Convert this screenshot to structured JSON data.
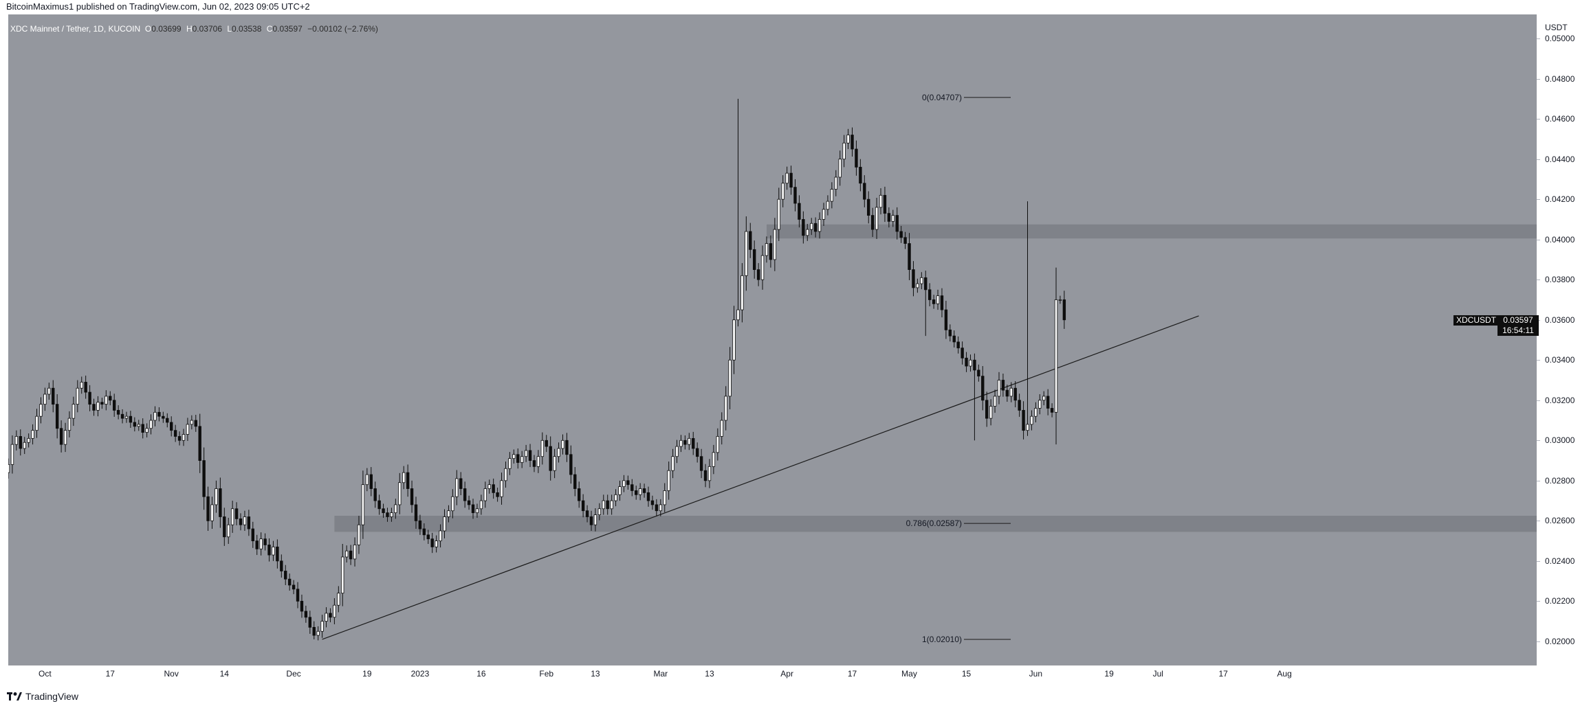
{
  "header": {
    "publisher_text": "BitcoinMaximus1 published on TradingView.com, Jun 02, 2023 09:05 UTC+2"
  },
  "legend": {
    "symbol_text": "XDC Mainnet / Tether, 1D, KUCOIN",
    "o_label": "O",
    "o_value": "0.03699",
    "h_label": "H",
    "h_value": "0.03706",
    "l_label": "L",
    "l_value": "0.03538",
    "c_label": "C",
    "c_value": "0.03597",
    "change": "−0.00102 (−2.76%)"
  },
  "price_tag": {
    "symbol": "XDCUSDT",
    "price": "0.03597",
    "countdown": "16:54:11"
  },
  "footer": {
    "logo_text": "TradingView"
  },
  "chart_data": {
    "type": "candlestick",
    "pair": "XDCUSDT",
    "interval": "1D",
    "exchange": "KUCOIN",
    "y_unit": "USDT",
    "ylim": [
      0.0188,
      0.0512
    ],
    "y_ticks": [
      "0.02000",
      "0.02200",
      "0.02400",
      "0.02600",
      "0.02800",
      "0.03000",
      "0.03200",
      "0.03400",
      "0.03600",
      "0.03800",
      "0.04000",
      "0.04200",
      "0.04400",
      "0.04600",
      "0.04800",
      "0.05000"
    ],
    "x_ticks": [
      {
        "label": "Oct",
        "date": "2022-10-01"
      },
      {
        "label": "17",
        "date": "2022-10-17"
      },
      {
        "label": "Nov",
        "date": "2022-11-01"
      },
      {
        "label": "14",
        "date": "2022-11-14"
      },
      {
        "label": "Dec",
        "date": "2022-12-01"
      },
      {
        "label": "19",
        "date": "2022-12-19"
      },
      {
        "label": "2023",
        "date": "2023-01-01"
      },
      {
        "label": "16",
        "date": "2023-01-16"
      },
      {
        "label": "Feb",
        "date": "2023-02-01"
      },
      {
        "label": "13",
        "date": "2023-02-13"
      },
      {
        "label": "Mar",
        "date": "2023-03-01"
      },
      {
        "label": "13",
        "date": "2023-03-13"
      },
      {
        "label": "Apr",
        "date": "2023-04-01"
      },
      {
        "label": "17",
        "date": "2023-04-17"
      },
      {
        "label": "May",
        "date": "2023-05-01"
      },
      {
        "label": "15",
        "date": "2023-05-15"
      },
      {
        "label": "Jun",
        "date": "2023-06-01"
      },
      {
        "label": "19",
        "date": "2023-06-19"
      },
      {
        "label": "Jul",
        "date": "2023-07-01"
      },
      {
        "label": "17",
        "date": "2023-07-17"
      },
      {
        "label": "Aug",
        "date": "2023-08-01"
      }
    ],
    "start_date": "2022-09-22",
    "candles_close": [
      0.0288,
      0.0298,
      0.0302,
      0.0296,
      0.0299,
      0.0301,
      0.0305,
      0.0312,
      0.0318,
      0.0323,
      0.0326,
      0.0318,
      0.0306,
      0.0298,
      0.0305,
      0.0311,
      0.0318,
      0.0326,
      0.0329,
      0.0324,
      0.0318,
      0.0315,
      0.0319,
      0.0318,
      0.0322,
      0.032,
      0.0315,
      0.0313,
      0.0311,
      0.0312,
      0.0309,
      0.0307,
      0.0308,
      0.0304,
      0.0306,
      0.031,
      0.0314,
      0.0312,
      0.0311,
      0.0309,
      0.0305,
      0.0302,
      0.03,
      0.0303,
      0.0308,
      0.031,
      0.0307,
      0.029,
      0.0272,
      0.026,
      0.0268,
      0.0276,
      0.0262,
      0.0252,
      0.0258,
      0.0266,
      0.0261,
      0.0258,
      0.0262,
      0.0256,
      0.025,
      0.0246,
      0.0251,
      0.0248,
      0.0243,
      0.0247,
      0.024,
      0.0235,
      0.0231,
      0.0228,
      0.0226,
      0.022,
      0.0215,
      0.0212,
      0.0207,
      0.0203,
      0.0205,
      0.021,
      0.0214,
      0.0212,
      0.0218,
      0.0224,
      0.0242,
      0.0245,
      0.0241,
      0.0248,
      0.0258,
      0.0278,
      0.0283,
      0.0276,
      0.027,
      0.0266,
      0.0264,
      0.0262,
      0.0264,
      0.0268,
      0.0279,
      0.0284,
      0.0276,
      0.0268,
      0.026,
      0.0256,
      0.0253,
      0.0251,
      0.0247,
      0.025,
      0.0255,
      0.0262,
      0.0265,
      0.0272,
      0.0281,
      0.0276,
      0.027,
      0.0268,
      0.0264,
      0.0266,
      0.027,
      0.0276,
      0.0278,
      0.0274,
      0.0272,
      0.028,
      0.0286,
      0.0291,
      0.0293,
      0.0289,
      0.0292,
      0.0295,
      0.029,
      0.0287,
      0.0292,
      0.03,
      0.0297,
      0.0285,
      0.0292,
      0.0296,
      0.03,
      0.0293,
      0.0283,
      0.0276,
      0.027,
      0.0265,
      0.0262,
      0.0258,
      0.0263,
      0.0266,
      0.027,
      0.0266,
      0.027,
      0.0273,
      0.0277,
      0.028,
      0.0278,
      0.0275,
      0.0273,
      0.0276,
      0.0274,
      0.027,
      0.0268,
      0.0265,
      0.0268,
      0.0275,
      0.0285,
      0.0292,
      0.0297,
      0.03,
      0.0298,
      0.0301,
      0.0296,
      0.0292,
      0.0285,
      0.028,
      0.0287,
      0.0294,
      0.0302,
      0.031,
      0.0322,
      0.034,
      0.036,
      0.0365,
      0.0382,
      0.0404,
      0.0395,
      0.0385,
      0.038,
      0.0392,
      0.0398,
      0.039,
      0.0405,
      0.042,
      0.0428,
      0.0433,
      0.0426,
      0.0418,
      0.041,
      0.0402,
      0.0405,
      0.0408,
      0.0404,
      0.041,
      0.0415,
      0.0419,
      0.0425,
      0.0431,
      0.044,
      0.0448,
      0.0452,
      0.0445,
      0.0436,
      0.0428,
      0.042,
      0.0412,
      0.0405,
      0.0416,
      0.0422,
      0.0413,
      0.0409,
      0.0412,
      0.0404,
      0.0401,
      0.0398,
      0.0385,
      0.0376,
      0.0378,
      0.0381,
      0.0375,
      0.037,
      0.0368,
      0.0372,
      0.0365,
      0.0355,
      0.0352,
      0.0349,
      0.0346,
      0.0341,
      0.0337,
      0.034,
      0.0335,
      0.0332,
      0.032,
      0.0311,
      0.0317,
      0.0322,
      0.033,
      0.0325,
      0.0322,
      0.0326,
      0.032,
      0.0315,
      0.0305,
      0.0308,
      0.0312,
      0.0316,
      0.032,
      0.0322,
      0.0316,
      0.0314,
      0.037,
      0.037,
      0.036
    ],
    "horizontal_zones": [
      {
        "name": "resistance zone",
        "low": 0.04005,
        "high": 0.04075
      },
      {
        "name": "support zone",
        "low": 0.02545,
        "high": 0.02625
      }
    ],
    "trendline": [
      {
        "date": "2022-12-08",
        "value": 0.0201
      },
      {
        "date": "2023-07-11",
        "value": 0.0362
      }
    ],
    "fibonacci_levels": [
      {
        "label": "0(0.04707)",
        "value": 0.04707
      },
      {
        "label": "0.786(0.02587)",
        "value": 0.02587
      },
      {
        "label": "1(0.02010)",
        "value": 0.0201
      }
    ]
  }
}
